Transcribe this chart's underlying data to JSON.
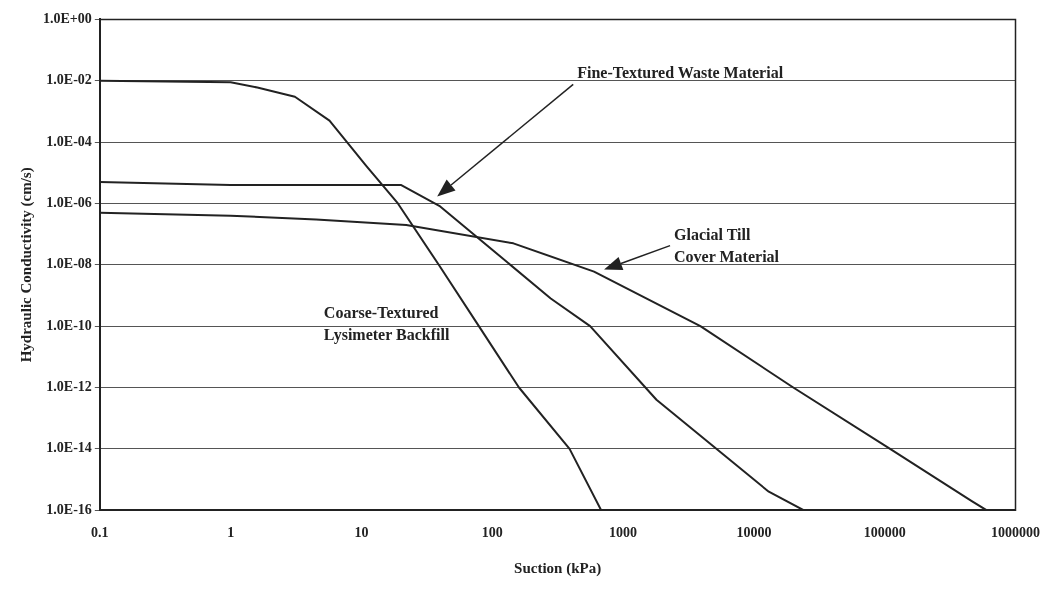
{
  "chart_data": {
    "type": "line",
    "xlabel": "Suction (kPa)",
    "ylabel": "Hydraulic Conductivity (cm/s)",
    "log": "xy",
    "grid": "y",
    "marker": "none",
    "line_style": "solid",
    "xlim": [
      0.1,
      1000000
    ],
    "xticks": [
      0.1,
      1,
      10,
      100,
      1000,
      10000,
      100000,
      1000000
    ],
    "ylim": [
      1e-16,
      1
    ],
    "yticks": [
      {
        "value": 1e-16,
        "label": "1.0E-16"
      },
      {
        "value": 1e-14,
        "label": "1.0E-14"
      },
      {
        "value": 1e-12,
        "label": "1.0E-12"
      },
      {
        "value": 1e-10,
        "label": "1.0E-10"
      },
      {
        "value": 1e-08,
        "label": "1.0E-08"
      },
      {
        "value": 1e-06,
        "label": "1.0E-06"
      },
      {
        "value": 0.0001,
        "label": "1.0E-04"
      },
      {
        "value": 0.01,
        "label": "1.0E-02"
      },
      {
        "value": 1,
        "label": "1.0E+00"
      }
    ],
    "series": [
      {
        "name": "Coarse-Textured\nLysimeter Backfill",
        "color": "#222222",
        "x": [
          0.1,
          1,
          1.6,
          3.1,
          5.7,
          11,
          19,
          39,
          79,
          160,
          390,
          680
        ],
        "values": [
          0.01,
          0.009,
          0.006,
          0.003,
          0.0005,
          1.6e-05,
          1e-06,
          1e-08,
          1e-10,
          1e-12,
          1e-14,
          1e-16
        ]
      },
      {
        "name": "Fine-Textured Waste Material",
        "color": "#222222",
        "x": [
          0.1,
          1,
          20,
          40,
          280,
          560,
          1800,
          13000,
          24000
        ],
        "values": [
          5e-06,
          4e-06,
          4e-06,
          8e-07,
          8e-10,
          1e-10,
          4e-13,
          4e-16,
          1e-16
        ]
      },
      {
        "name": "Glacial Till\nCover Material",
        "color": "#222222",
        "x": [
          0.1,
          1,
          4.5,
          22,
          145,
          600,
          3900,
          20000,
          110000,
          460000,
          600000
        ],
        "values": [
          5e-07,
          4e-07,
          3e-07,
          2e-07,
          5e-08,
          6e-09,
          1e-10,
          1e-12,
          1e-14,
          2e-16,
          1e-16
        ]
      }
    ]
  }
}
